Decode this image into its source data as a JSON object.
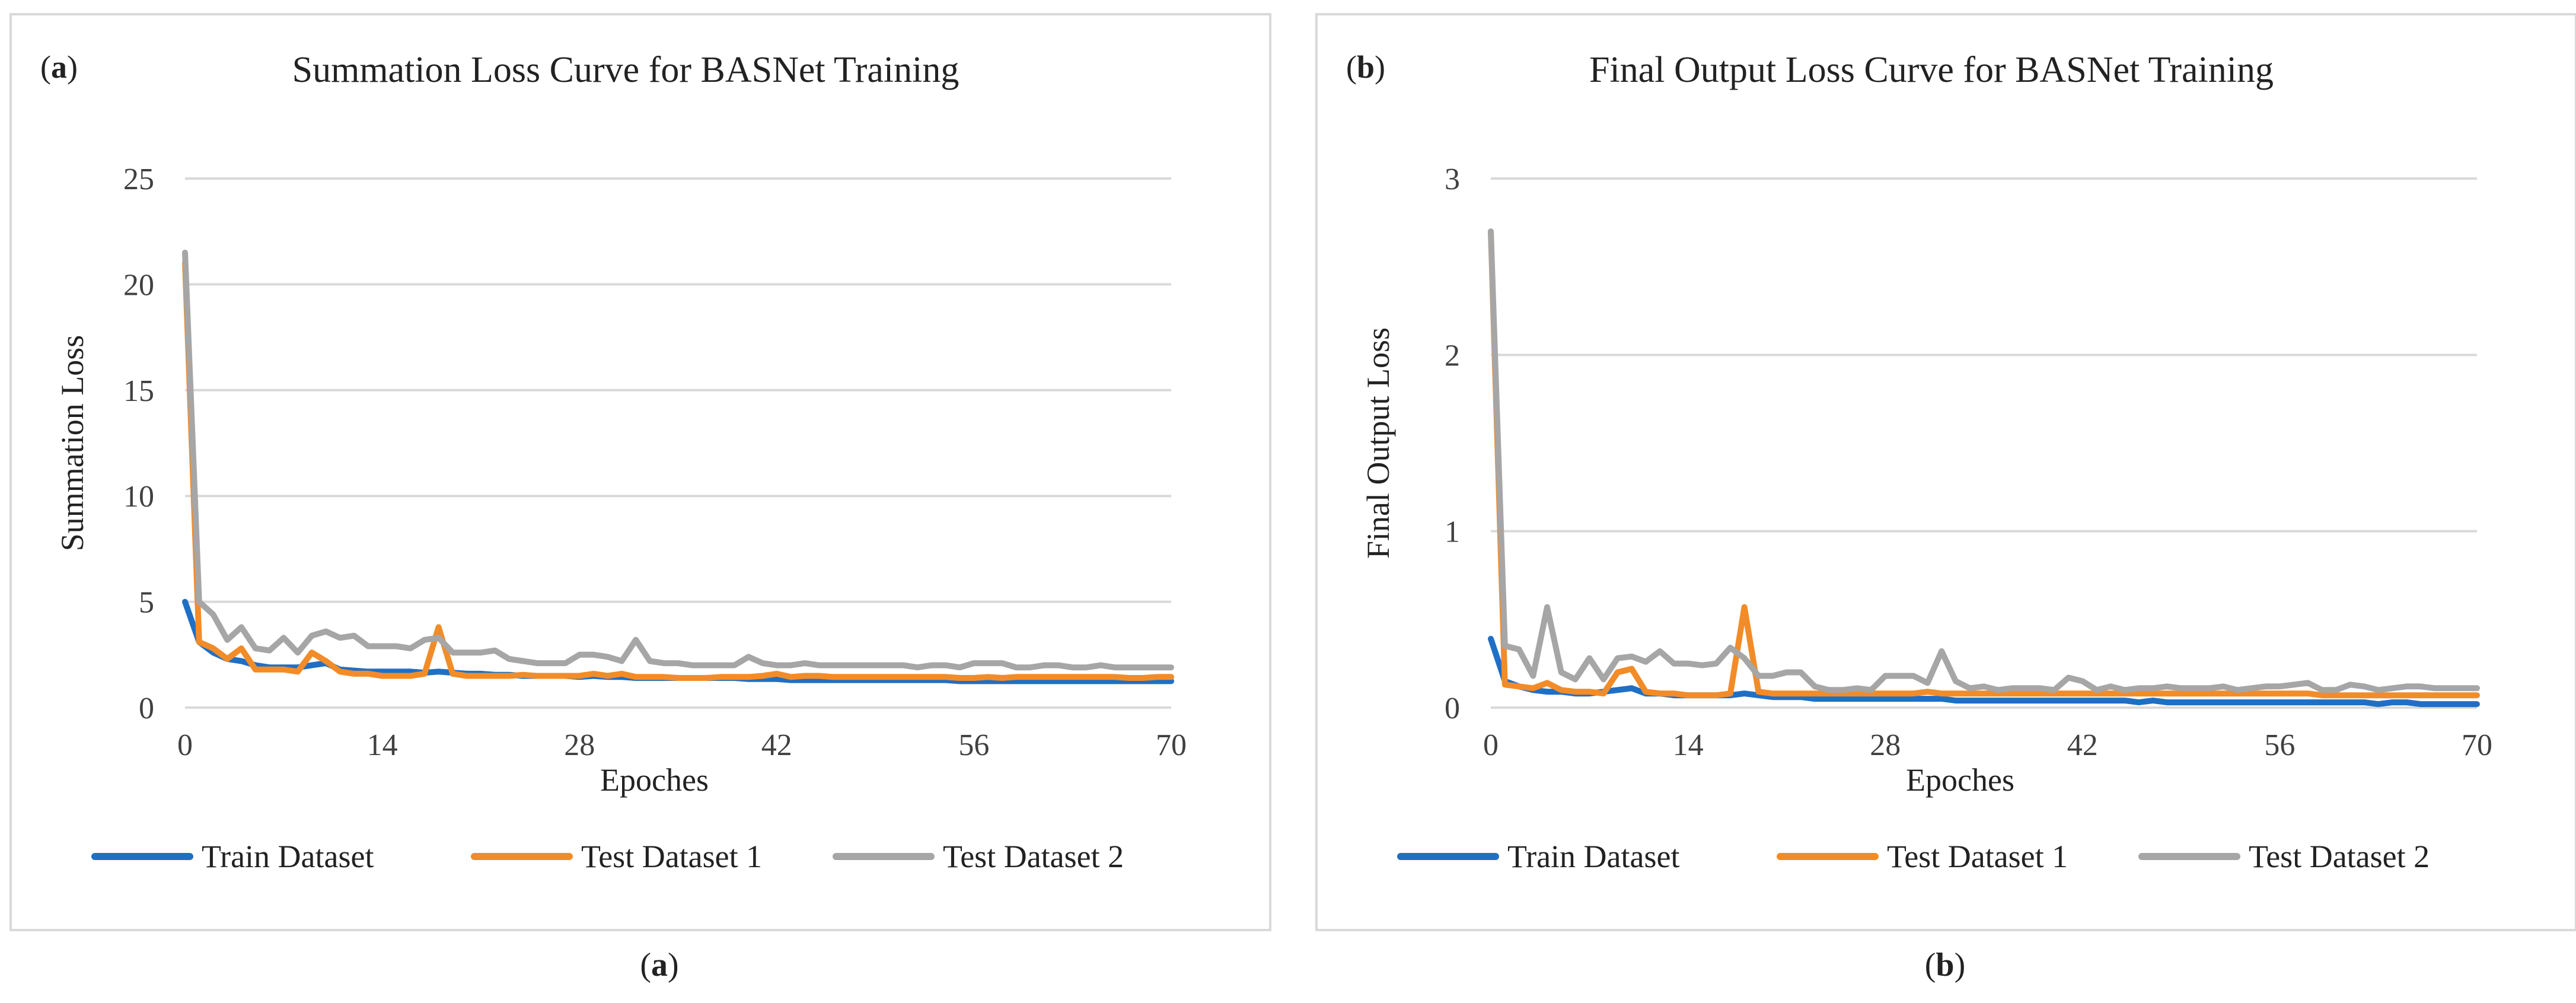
{
  "colors": {
    "train": "#1f6fc5",
    "test1": "#f28c28",
    "test2": "#a6a6a6",
    "grid": "#d9d9d9",
    "text": "#404040"
  },
  "captions": [
    "a",
    "b"
  ],
  "chart_data": [
    {
      "type": "line",
      "panel_label": "a",
      "title": "Summation Loss Curve for BASNet Training",
      "xlabel": "Epoches",
      "ylabel": "Summation Loss",
      "xlim": [
        0,
        70
      ],
      "ylim": [
        0,
        25
      ],
      "xticks": [
        0,
        14,
        28,
        42,
        56,
        70
      ],
      "yticks": [
        0,
        5,
        10,
        15,
        20,
        25
      ],
      "legend_position": "bottom",
      "series": [
        {
          "name": "Train Dataset",
          "color_key": "train",
          "values": [
            5.0,
            3.1,
            2.6,
            2.3,
            2.2,
            2.0,
            1.9,
            1.9,
            1.9,
            2.0,
            2.1,
            1.8,
            1.75,
            1.7,
            1.7,
            1.7,
            1.7,
            1.65,
            1.7,
            1.65,
            1.6,
            1.6,
            1.55,
            1.55,
            1.5,
            1.5,
            1.5,
            1.5,
            1.45,
            1.5,
            1.45,
            1.45,
            1.4,
            1.4,
            1.4,
            1.4,
            1.4,
            1.4,
            1.4,
            1.4,
            1.35,
            1.35,
            1.35,
            1.3,
            1.3,
            1.3,
            1.3,
            1.3,
            1.3,
            1.3,
            1.3,
            1.3,
            1.3,
            1.3,
            1.3,
            1.25,
            1.25,
            1.25,
            1.25,
            1.25,
            1.25,
            1.25,
            1.25,
            1.25,
            1.25,
            1.25,
            1.25,
            1.25,
            1.25,
            1.25,
            1.25
          ]
        },
        {
          "name": "Test Dataset 1",
          "color_key": "test1",
          "values": [
            21.0,
            3.1,
            2.8,
            2.3,
            2.8,
            1.8,
            1.8,
            1.8,
            1.7,
            2.6,
            2.2,
            1.7,
            1.6,
            1.6,
            1.5,
            1.5,
            1.5,
            1.6,
            3.8,
            1.6,
            1.5,
            1.5,
            1.5,
            1.5,
            1.55,
            1.5,
            1.5,
            1.5,
            1.5,
            1.6,
            1.5,
            1.6,
            1.45,
            1.45,
            1.45,
            1.4,
            1.4,
            1.4,
            1.45,
            1.45,
            1.45,
            1.5,
            1.6,
            1.45,
            1.5,
            1.5,
            1.45,
            1.45,
            1.45,
            1.45,
            1.45,
            1.45,
            1.45,
            1.45,
            1.45,
            1.4,
            1.4,
            1.45,
            1.4,
            1.45,
            1.45,
            1.45,
            1.45,
            1.45,
            1.45,
            1.45,
            1.45,
            1.4,
            1.4,
            1.45,
            1.45
          ]
        },
        {
          "name": "Test Dataset 2",
          "color_key": "test2",
          "values": [
            21.5,
            5.0,
            4.4,
            3.2,
            3.8,
            2.8,
            2.7,
            3.3,
            2.6,
            3.4,
            3.6,
            3.3,
            3.4,
            2.9,
            2.9,
            2.9,
            2.8,
            3.2,
            3.3,
            2.6,
            2.6,
            2.6,
            2.7,
            2.3,
            2.2,
            2.1,
            2.1,
            2.1,
            2.5,
            2.5,
            2.4,
            2.2,
            3.2,
            2.2,
            2.1,
            2.1,
            2.0,
            2.0,
            2.0,
            2.0,
            2.4,
            2.1,
            2.0,
            2.0,
            2.1,
            2.0,
            2.0,
            2.0,
            2.0,
            2.0,
            2.0,
            2.0,
            1.9,
            2.0,
            2.0,
            1.9,
            2.1,
            2.1,
            2.1,
            1.9,
            1.9,
            2.0,
            2.0,
            1.9,
            1.9,
            2.0,
            1.9,
            1.9,
            1.9,
            1.9,
            1.9
          ]
        }
      ]
    },
    {
      "type": "line",
      "panel_label": "b",
      "title": "Final Output Loss Curve for BASNet Training",
      "xlabel": "Epoches",
      "ylabel": "Final Output Loss",
      "xlim": [
        0,
        70
      ],
      "ylim": [
        0,
        3
      ],
      "xticks": [
        0,
        14,
        28,
        42,
        56,
        70
      ],
      "yticks": [
        0,
        1,
        2,
        3
      ],
      "legend_position": "bottom",
      "series": [
        {
          "name": "Train Dataset",
          "color_key": "train",
          "values": [
            0.39,
            0.15,
            0.12,
            0.1,
            0.09,
            0.09,
            0.08,
            0.08,
            0.09,
            0.1,
            0.11,
            0.08,
            0.08,
            0.07,
            0.07,
            0.07,
            0.07,
            0.07,
            0.08,
            0.07,
            0.06,
            0.06,
            0.06,
            0.05,
            0.05,
            0.05,
            0.05,
            0.05,
            0.05,
            0.05,
            0.05,
            0.05,
            0.05,
            0.04,
            0.04,
            0.04,
            0.04,
            0.04,
            0.04,
            0.04,
            0.04,
            0.04,
            0.04,
            0.04,
            0.04,
            0.04,
            0.03,
            0.04,
            0.03,
            0.03,
            0.03,
            0.03,
            0.03,
            0.03,
            0.03,
            0.03,
            0.03,
            0.03,
            0.03,
            0.03,
            0.03,
            0.03,
            0.03,
            0.02,
            0.03,
            0.03,
            0.02,
            0.02,
            0.02,
            0.02,
            0.02
          ]
        },
        {
          "name": "Test Dataset 1",
          "color_key": "test1",
          "values": [
            2.7,
            0.13,
            0.12,
            0.11,
            0.14,
            0.1,
            0.09,
            0.09,
            0.08,
            0.2,
            0.22,
            0.09,
            0.08,
            0.08,
            0.07,
            0.07,
            0.07,
            0.08,
            0.57,
            0.09,
            0.08,
            0.08,
            0.08,
            0.08,
            0.08,
            0.08,
            0.08,
            0.08,
            0.08,
            0.08,
            0.08,
            0.09,
            0.08,
            0.08,
            0.08,
            0.08,
            0.08,
            0.08,
            0.08,
            0.08,
            0.08,
            0.08,
            0.08,
            0.08,
            0.08,
            0.08,
            0.08,
            0.08,
            0.08,
            0.08,
            0.08,
            0.08,
            0.08,
            0.08,
            0.08,
            0.08,
            0.08,
            0.08,
            0.08,
            0.07,
            0.07,
            0.07,
            0.07,
            0.07,
            0.07,
            0.07,
            0.07,
            0.07,
            0.07,
            0.07,
            0.07
          ]
        },
        {
          "name": "Test Dataset 2",
          "color_key": "test2",
          "values": [
            2.7,
            0.35,
            0.33,
            0.18,
            0.57,
            0.2,
            0.16,
            0.28,
            0.16,
            0.28,
            0.29,
            0.26,
            0.32,
            0.25,
            0.25,
            0.24,
            0.25,
            0.34,
            0.28,
            0.18,
            0.18,
            0.2,
            0.2,
            0.12,
            0.1,
            0.1,
            0.11,
            0.1,
            0.18,
            0.18,
            0.18,
            0.14,
            0.32,
            0.15,
            0.11,
            0.12,
            0.1,
            0.11,
            0.11,
            0.11,
            0.1,
            0.17,
            0.15,
            0.1,
            0.12,
            0.1,
            0.11,
            0.11,
            0.12,
            0.11,
            0.11,
            0.11,
            0.12,
            0.1,
            0.11,
            0.12,
            0.12,
            0.13,
            0.14,
            0.1,
            0.1,
            0.13,
            0.12,
            0.1,
            0.11,
            0.12,
            0.12,
            0.11,
            0.11,
            0.11,
            0.11
          ]
        }
      ]
    }
  ]
}
